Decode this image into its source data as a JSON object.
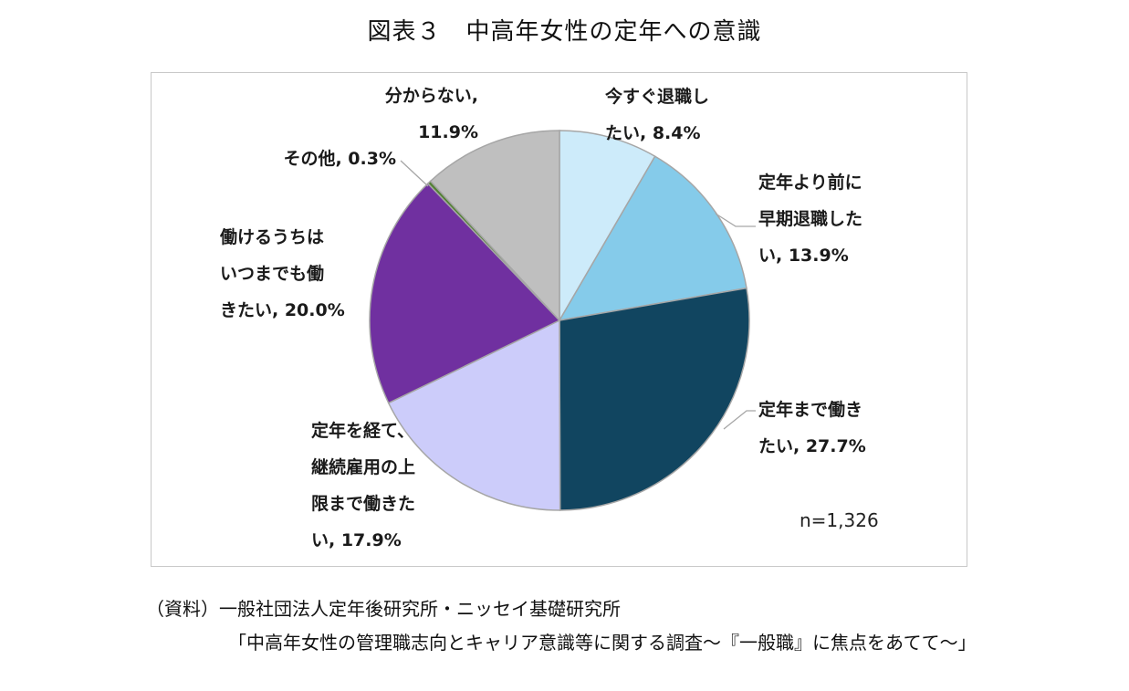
{
  "title": "図表３　中高年女性の定年への意識",
  "note": "n=1,326",
  "source": {
    "line1": "（資料）一般社団法人定年後研究所・ニッセイ基礎研究所",
    "line2": "「中高年女性の管理職志向とキャリア意識等に関する調査～『一般職』に焦点をあてて～」"
  },
  "chart_data": {
    "type": "pie",
    "unit": "%",
    "slices": [
      {
        "label": "今すぐ退職したい",
        "value": 8.4,
        "color": "#cdebfa",
        "label_lines": [
          "今すぐ退職し",
          "たい, 8.4%"
        ]
      },
      {
        "label": "定年より前に早期退職したい",
        "value": 13.9,
        "color": "#85cbea",
        "label_lines": [
          "定年より前に",
          "早期退職した",
          "い, 13.9%"
        ]
      },
      {
        "label": "定年まで働きたい",
        "value": 27.7,
        "color": "#114560",
        "label_lines": [
          "定年まで働き",
          "たい, 27.7%"
        ]
      },
      {
        "label": "定年を経て、継続雇用の上限まで働きたい",
        "value": 17.9,
        "color": "#ccccfa",
        "label_lines": [
          "定年を経て、",
          "継続雇用の上",
          "限まで働きた",
          "い, 17.9%"
        ]
      },
      {
        "label": "働けるうちはいつまでも働きたい",
        "value": 20.0,
        "color": "#7030a0",
        "label_lines": [
          "働けるうちは",
          "いつまでも働",
          "きたい, 20.0%"
        ]
      },
      {
        "label": "その他",
        "value": 0.3,
        "color": "#548235",
        "label_lines": [
          "その他, 0.3%"
        ]
      },
      {
        "label": "分からない",
        "value": 11.9,
        "color": "#bfbfbf",
        "label_lines": [
          "分からない,",
          "11.9%"
        ]
      }
    ]
  }
}
